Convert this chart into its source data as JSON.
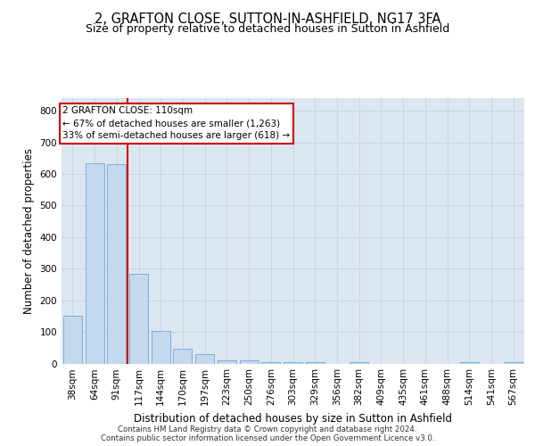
{
  "title": "2, GRAFTON CLOSE, SUTTON-IN-ASHFIELD, NG17 3FA",
  "subtitle": "Size of property relative to detached houses in Sutton in Ashfield",
  "xlabel": "Distribution of detached houses by size in Sutton in Ashfield",
  "ylabel": "Number of detached properties",
  "bar_values": [
    150,
    635,
    630,
    285,
    103,
    47,
    30,
    10,
    10,
    5,
    5,
    5,
    0,
    5,
    0,
    0,
    0,
    0,
    5,
    0,
    5
  ],
  "bar_labels": [
    "38sqm",
    "64sqm",
    "91sqm",
    "117sqm",
    "144sqm",
    "170sqm",
    "197sqm",
    "223sqm",
    "250sqm",
    "276sqm",
    "303sqm",
    "329sqm",
    "356sqm",
    "382sqm",
    "409sqm",
    "435sqm",
    "461sqm",
    "488sqm",
    "514sqm",
    "541sqm",
    "567sqm"
  ],
  "bar_color": "#c5d9ee",
  "bar_edge_color": "#5b9bd5",
  "grid_color": "#c8d4e3",
  "background_color": "#dce6f1",
  "vline_color": "#cc0000",
  "annotation_text": "2 GRAFTON CLOSE: 110sqm\n← 67% of detached houses are smaller (1,263)\n33% of semi-detached houses are larger (618) →",
  "annotation_box_color": "#ffffff",
  "annotation_box_edge": "#cc0000",
  "ylim": [
    0,
    840
  ],
  "yticks": [
    0,
    100,
    200,
    300,
    400,
    500,
    600,
    700,
    800
  ],
  "footer": "Contains HM Land Registry data © Crown copyright and database right 2024.\nContains public sector information licensed under the Open Government Licence v3.0.",
  "title_fontsize": 10.5,
  "subtitle_fontsize": 9,
  "xlabel_fontsize": 8.5,
  "ylabel_fontsize": 8.5,
  "tick_fontsize": 7.5,
  "annotation_fontsize": 7.5,
  "footer_fontsize": 6.2
}
